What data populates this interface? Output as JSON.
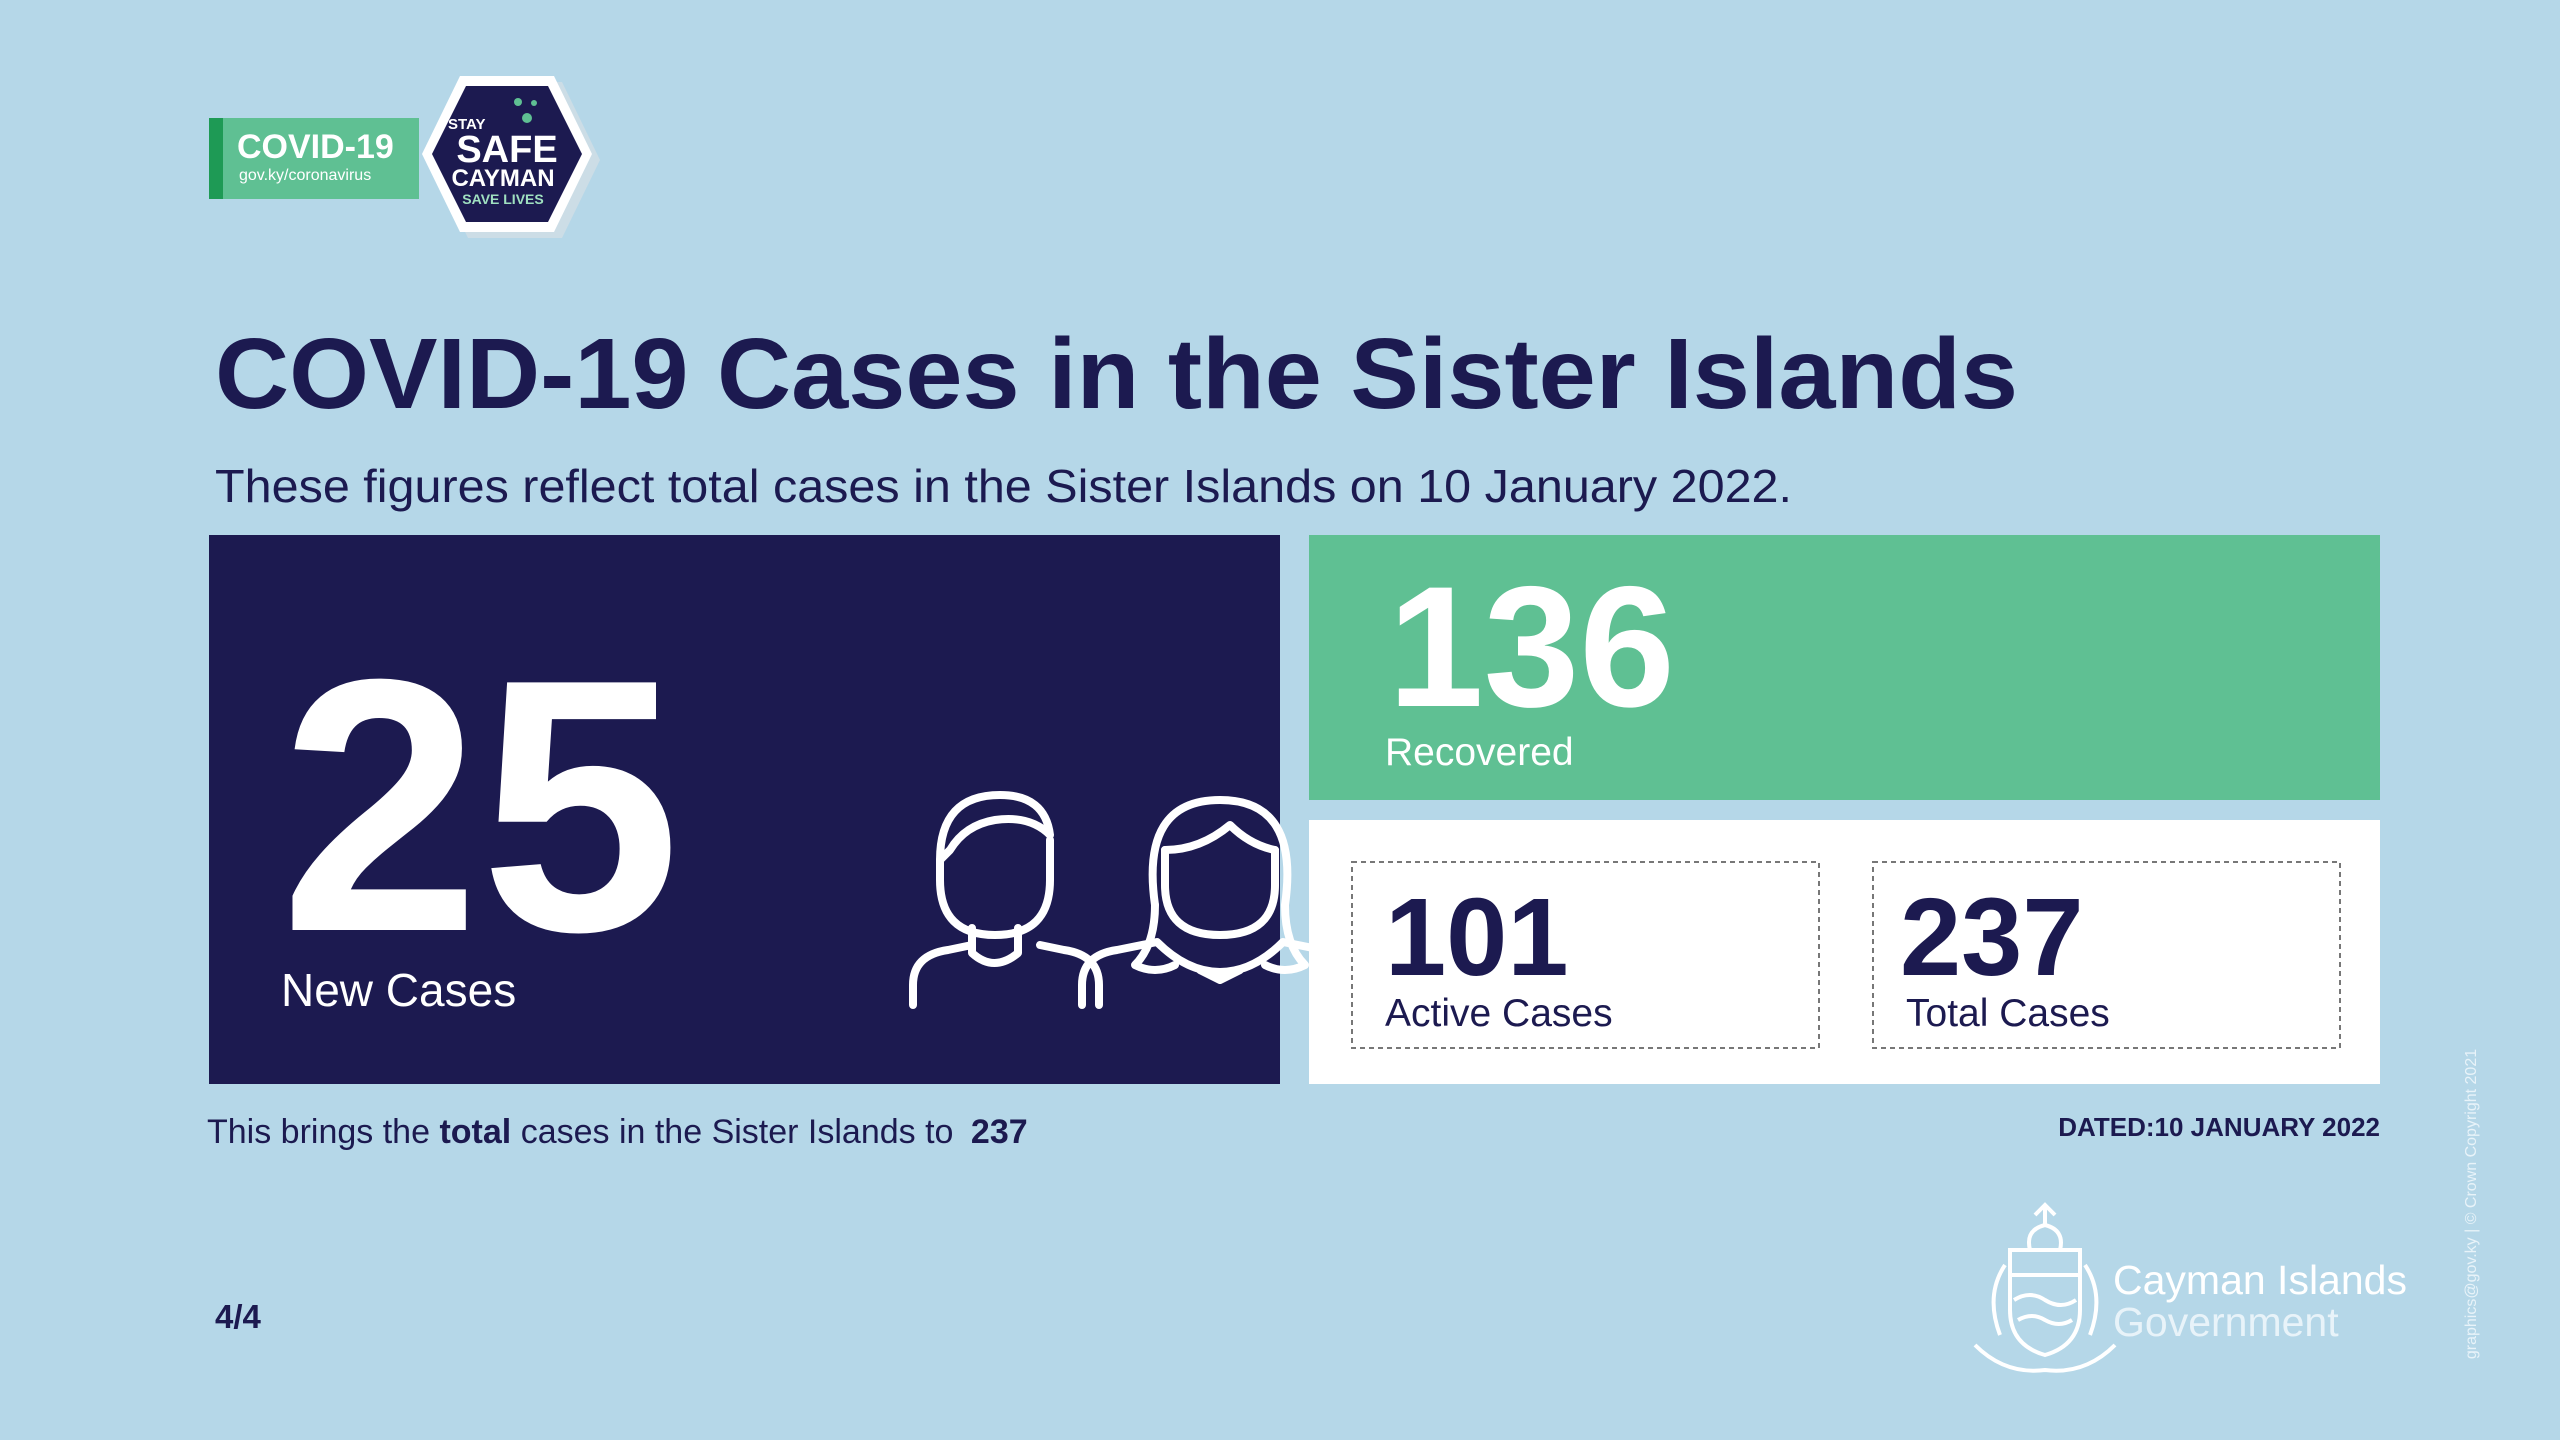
{
  "logo": {
    "badge": "COVID-19",
    "url": "gov.ky/coronavirus",
    "stay": "STAY",
    "safe": "SAFE",
    "cayman": "CAYMAN",
    "save_lives": "SAVE LIVES"
  },
  "header": {
    "title": "COVID-19 Cases in the Sister Islands",
    "subtitle": "These figures reflect total cases in the Sister Islands on 10 January 2022."
  },
  "stats": {
    "new_cases": {
      "value": 25,
      "label": "New Cases"
    },
    "recovered": {
      "value": 136,
      "label": "Recovered"
    },
    "active": {
      "value": 101,
      "label": "Active Cases"
    },
    "total": {
      "value": 237,
      "label": "Total Cases"
    }
  },
  "footer": {
    "lead": "This brings the",
    "bold": "total",
    "rest": "cases in the Sister Islands to",
    "total": "237",
    "dated": "DATED:10 JANUARY 2022",
    "page": "4/4"
  },
  "government": {
    "line1": "Cayman Islands",
    "line2": "Government",
    "credit": "graphics@gov.ky | © Crown Copyright 2021"
  }
}
